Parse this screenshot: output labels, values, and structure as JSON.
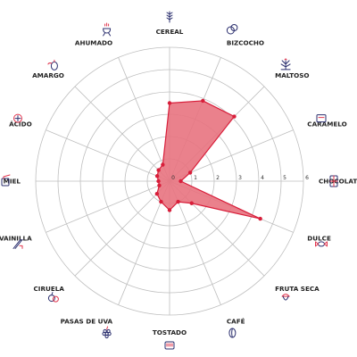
{
  "chart_data": {
    "type": "radar",
    "title": "",
    "categories": [
      "CEREAL",
      "BIZCOCHO",
      "MALTOSO",
      "CARAMELO",
      "CHOCOLATE",
      "DULCE",
      "FRUTA SECA",
      "CAFÉ",
      "TOSTADO",
      "PASAS DE UVA",
      "CIRUELA",
      "VAINILLA",
      "MIEL",
      "ÁCIDO",
      "AMARGO",
      "AHUMADO"
    ],
    "icons": [
      "wheat-icon",
      "cookies-icon",
      "malt-icon",
      "caramel-icon",
      "chocolate-icon",
      "candy-icon",
      "nut-icon",
      "coffee-bean-icon",
      "toaster-icon",
      "grapes-icon",
      "plums-icon",
      "vanilla-icon",
      "honey-icon",
      "lemon-icon",
      "hops-icon",
      "grill-icon"
    ],
    "series": [
      {
        "values": [
          3.5,
          3.9,
          4.1,
          1.0,
          0.5,
          4.4,
          1.4,
          1.0,
          1.3,
          1.0,
          0.8,
          0.5,
          0.5,
          0.6,
          0.7,
          0.8
        ]
      }
    ],
    "ticks": [
      "0",
      "1",
      "2",
      "3",
      "4",
      "5",
      "6"
    ],
    "range": [
      0,
      6
    ],
    "grid": true,
    "colors": {
      "fill": "#e8737f",
      "stroke": "#d81e3a",
      "grid": "#bfbfbf",
      "label": "#222222",
      "icon_primary": "#2b2f6e",
      "icon_accent": "#e2374f"
    }
  }
}
